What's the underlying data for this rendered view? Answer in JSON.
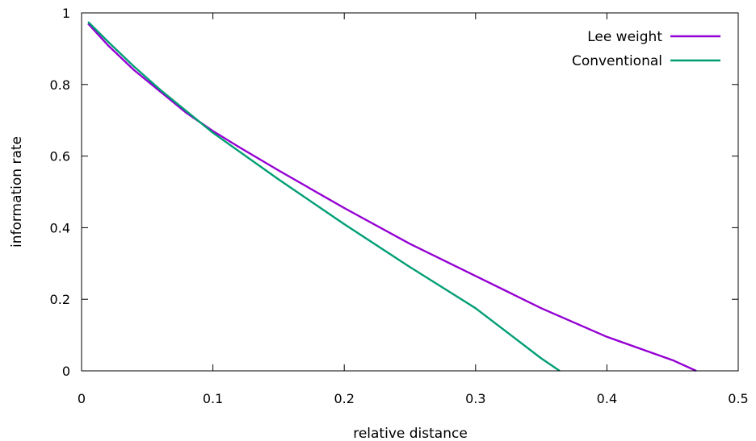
{
  "chart_data": {
    "type": "line",
    "title": "",
    "xlabel": "relative distance",
    "ylabel": "information rate",
    "xlim": [
      0,
      0.5
    ],
    "ylim": [
      0,
      1
    ],
    "xticks": [
      {
        "value": 0,
        "label": "0"
      },
      {
        "value": 0.1,
        "label": "0.1"
      },
      {
        "value": 0.2,
        "label": "0.2"
      },
      {
        "value": 0.3,
        "label": "0.3"
      },
      {
        "value": 0.4,
        "label": "0.4"
      },
      {
        "value": 0.5,
        "label": "0.5"
      }
    ],
    "yticks": [
      {
        "value": 0,
        "label": "0"
      },
      {
        "value": 0.2,
        "label": "0.2"
      },
      {
        "value": 0.4,
        "label": "0.4"
      },
      {
        "value": 0.6,
        "label": "0.6"
      },
      {
        "value": 0.8,
        "label": "0.8"
      },
      {
        "value": 1,
        "label": "1"
      }
    ],
    "grid": false,
    "legend_position": "top-right",
    "series": [
      {
        "name": "Lee weight",
        "color": "#9400d3",
        "x": [
          0.005,
          0.02,
          0.04,
          0.06,
          0.08,
          0.1,
          0.12,
          0.15,
          0.2,
          0.25,
          0.3,
          0.35,
          0.4,
          0.45,
          0.468
        ],
        "y": [
          0.97,
          0.91,
          0.84,
          0.78,
          0.72,
          0.67,
          0.625,
          0.56,
          0.455,
          0.355,
          0.265,
          0.175,
          0.095,
          0.03,
          0.0
        ]
      },
      {
        "name": "Conventional",
        "color": "#009e73",
        "x": [
          0.005,
          0.02,
          0.04,
          0.06,
          0.08,
          0.1,
          0.15,
          0.2,
          0.25,
          0.3,
          0.35,
          0.364
        ],
        "y": [
          0.975,
          0.92,
          0.85,
          0.785,
          0.725,
          0.665,
          0.535,
          0.41,
          0.29,
          0.175,
          0.035,
          0.0
        ]
      }
    ]
  }
}
